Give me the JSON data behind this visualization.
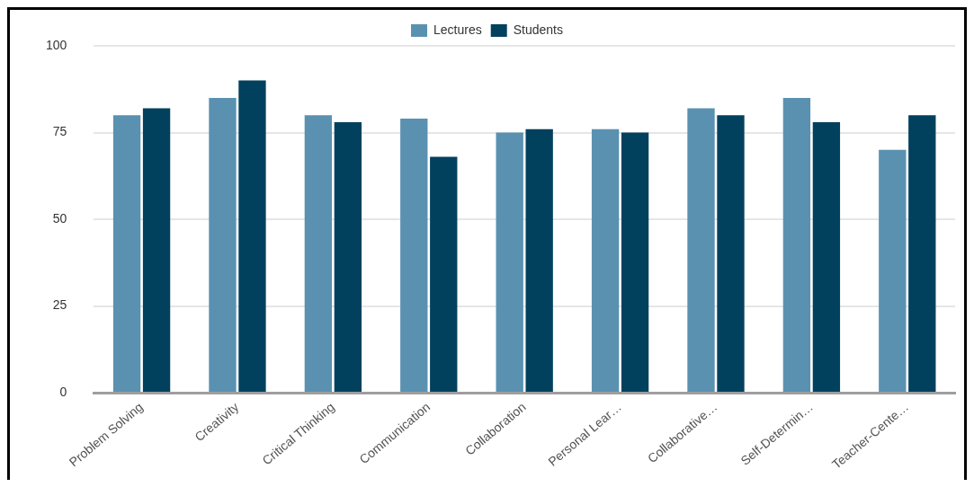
{
  "chart_data": {
    "type": "bar",
    "categories": [
      "Problem Solving",
      "Creativity",
      "Critical Thinking",
      "Communication",
      "Collaboration",
      "Personal Lear…",
      "Collaborative…",
      "Self-Determin…",
      "Teacher-Cente…"
    ],
    "series": [
      {
        "name": "Lectures",
        "color": "#5a91b1",
        "values": [
          80,
          85,
          80,
          79,
          75,
          76,
          82,
          85,
          70
        ]
      },
      {
        "name": "Students",
        "color": "#02415e",
        "values": [
          82,
          90,
          78,
          68,
          76,
          75,
          80,
          78,
          80
        ]
      }
    ],
    "ylim": [
      0,
      100
    ],
    "yticks": [
      0,
      25,
      50,
      75,
      100
    ],
    "grid": "y",
    "legend": "top"
  }
}
